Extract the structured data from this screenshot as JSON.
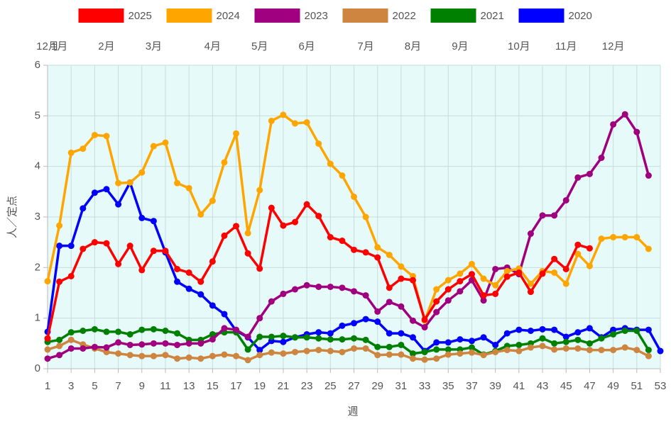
{
  "chart_data": {
    "type": "line",
    "xlabel": "週",
    "ylabel": "人／定点",
    "legend": "top",
    "grid": true,
    "xlim": [
      1,
      53
    ],
    "xticks": [
      1,
      3,
      5,
      7,
      9,
      11,
      13,
      15,
      17,
      19,
      21,
      23,
      25,
      27,
      29,
      31,
      33,
      35,
      37,
      39,
      41,
      43,
      45,
      47,
      49,
      51,
      53
    ],
    "ylim": [
      0,
      6
    ],
    "yticks": [
      0,
      1,
      2,
      3,
      4,
      5,
      6
    ],
    "month_labels": [
      {
        "week": 1,
        "label": "12月"
      },
      {
        "week": 2,
        "label": "1月"
      },
      {
        "week": 6,
        "label": "2月"
      },
      {
        "week": 10,
        "label": "3月"
      },
      {
        "week": 15,
        "label": "4月"
      },
      {
        "week": 19,
        "label": "5月"
      },
      {
        "week": 23,
        "label": "6月"
      },
      {
        "week": 28,
        "label": "7月"
      },
      {
        "week": 32,
        "label": "8月"
      },
      {
        "week": 36,
        "label": "9月"
      },
      {
        "week": 41,
        "label": "10月"
      },
      {
        "week": 45,
        "label": "11月"
      },
      {
        "week": 49,
        "label": "12月"
      }
    ],
    "x": [
      1,
      2,
      3,
      4,
      5,
      6,
      7,
      8,
      9,
      10,
      11,
      12,
      13,
      14,
      15,
      16,
      17,
      18,
      19,
      20,
      21,
      22,
      23,
      24,
      25,
      26,
      27,
      28,
      29,
      30,
      31,
      32,
      33,
      34,
      35,
      36,
      37,
      38,
      39,
      40,
      41,
      42,
      43,
      44,
      45,
      46,
      47,
      48,
      49,
      50,
      51,
      52,
      53
    ],
    "series": [
      {
        "name": "2025",
        "color": "#ff0000",
        "values": [
          0.6,
          1.72,
          1.83,
          2.37,
          2.5,
          2.48,
          2.07,
          2.43,
          1.95,
          2.33,
          2.33,
          1.97,
          1.9,
          1.72,
          2.12,
          2.63,
          2.82,
          2.28,
          1.98,
          3.18,
          2.83,
          2.9,
          3.25,
          3.02,
          2.6,
          2.53,
          2.35,
          2.3,
          2.2,
          1.6,
          1.78,
          1.75,
          0.97,
          1.33,
          1.57,
          1.73,
          1.87,
          1.45,
          1.48,
          1.82,
          1.9,
          1.52,
          1.88,
          2.17,
          1.97,
          2.45,
          2.38,
          null,
          null,
          null,
          null,
          null,
          null
        ]
      },
      {
        "name": "2024",
        "color": "#ffa500",
        "values": [
          1.73,
          2.83,
          4.27,
          4.35,
          4.62,
          4.6,
          3.67,
          3.68,
          3.88,
          4.4,
          4.47,
          3.67,
          3.57,
          3.05,
          3.32,
          4.08,
          4.65,
          2.68,
          3.53,
          4.9,
          5.02,
          4.85,
          4.87,
          4.45,
          4.05,
          3.82,
          3.4,
          3.0,
          2.4,
          2.25,
          2.02,
          1.83,
          0.95,
          1.57,
          1.75,
          1.88,
          2.07,
          1.78,
          1.65,
          1.93,
          1.98,
          1.68,
          1.93,
          1.9,
          1.68,
          2.27,
          2.03,
          2.57,
          2.6,
          2.6,
          2.6,
          2.37,
          null
        ]
      },
      {
        "name": "2023",
        "color": "#a0007f",
        "values": [
          0.2,
          0.27,
          0.4,
          0.4,
          0.43,
          0.42,
          0.52,
          0.47,
          0.48,
          0.5,
          0.5,
          0.47,
          0.5,
          0.5,
          0.58,
          0.8,
          0.77,
          0.63,
          1.0,
          1.33,
          1.48,
          1.57,
          1.65,
          1.62,
          1.62,
          1.6,
          1.53,
          1.45,
          1.13,
          1.32,
          1.23,
          0.95,
          0.82,
          1.12,
          1.35,
          1.53,
          1.75,
          1.35,
          1.97,
          2.0,
          1.87,
          2.67,
          3.03,
          3.03,
          3.33,
          3.78,
          3.85,
          4.17,
          4.83,
          5.03,
          4.68,
          3.82,
          null
        ]
      },
      {
        "name": "2022",
        "color": "#cd853f",
        "values": [
          0.38,
          0.45,
          0.57,
          0.48,
          0.4,
          0.33,
          0.3,
          0.27,
          0.25,
          0.25,
          0.27,
          0.2,
          0.22,
          0.2,
          0.25,
          0.28,
          0.25,
          0.17,
          0.27,
          0.32,
          0.3,
          0.33,
          0.35,
          0.37,
          0.35,
          0.33,
          0.4,
          0.4,
          0.27,
          0.28,
          0.28,
          0.2,
          0.18,
          0.2,
          0.28,
          0.3,
          0.32,
          0.27,
          0.33,
          0.37,
          0.35,
          0.42,
          0.45,
          0.38,
          0.4,
          0.4,
          0.37,
          0.37,
          0.37,
          0.42,
          0.37,
          0.25,
          null
        ]
      },
      {
        "name": "2021",
        "color": "#008000",
        "values": [
          0.53,
          0.57,
          0.72,
          0.75,
          0.78,
          0.73,
          0.73,
          0.68,
          0.77,
          0.78,
          0.75,
          0.7,
          0.57,
          0.57,
          0.68,
          0.72,
          0.72,
          0.38,
          0.63,
          0.63,
          0.65,
          0.62,
          0.62,
          0.6,
          0.58,
          0.58,
          0.6,
          0.57,
          0.43,
          0.43,
          0.47,
          0.3,
          0.33,
          0.38,
          0.38,
          0.38,
          0.42,
          0.28,
          0.35,
          0.45,
          0.47,
          0.5,
          0.6,
          0.5,
          0.53,
          0.57,
          0.5,
          0.6,
          0.68,
          0.75,
          0.75,
          0.37,
          null
        ]
      },
      {
        "name": "2020",
        "color": "#0000ff",
        "values": [
          0.73,
          2.43,
          2.43,
          3.17,
          3.48,
          3.55,
          3.25,
          3.68,
          2.98,
          2.92,
          2.3,
          1.72,
          1.58,
          1.47,
          1.25,
          1.08,
          0.75,
          0.62,
          0.37,
          0.55,
          0.53,
          0.62,
          0.68,
          0.72,
          0.7,
          0.85,
          0.9,
          0.98,
          0.93,
          0.7,
          0.7,
          0.62,
          0.35,
          0.52,
          0.52,
          0.58,
          0.55,
          0.62,
          0.47,
          0.7,
          0.77,
          0.75,
          0.78,
          0.77,
          0.63,
          0.72,
          0.8,
          0.62,
          0.77,
          0.8,
          0.77,
          0.77,
          0.35
        ]
      }
    ]
  }
}
